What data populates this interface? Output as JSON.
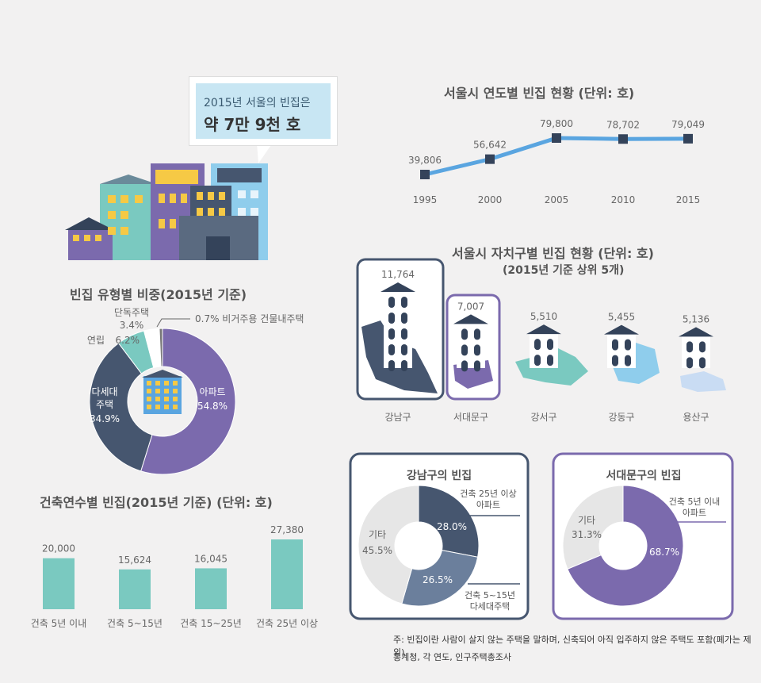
{
  "callout": {
    "line1": "2015년 서울의 빈집은",
    "line2": "약 7만 9천 호"
  },
  "colors": {
    "teal": "#7ac9c0",
    "purple": "#7b6aad",
    "navy": "#46566f",
    "lightgrey": "#e6e6e6",
    "blue": "#5aa5e0",
    "darknavy": "#34435a"
  },
  "chart_data": [
    {
      "type": "line",
      "title": "서울시 연도별 빈집 현황 (단위: 호)",
      "x": [
        "1995",
        "2000",
        "2005",
        "2010",
        "2015"
      ],
      "values": [
        39806,
        56642,
        79800,
        78702,
        79049
      ],
      "labels": [
        "39,806",
        "56,642",
        "79,800",
        "78,702",
        "79,049"
      ]
    },
    {
      "type": "pie",
      "title": "빈집 유형별 비중(2015년 기준)",
      "slices": [
        {
          "name": "아파트",
          "pct_label": "54.8%",
          "value": 54.8
        },
        {
          "name": "다세대 주택",
          "pct_label": "34.9%",
          "value": 34.9
        },
        {
          "name": "연립",
          "pct_label": "6.2%",
          "value": 6.2
        },
        {
          "name": "단독주택",
          "pct_label": "3.4%",
          "value": 3.4
        },
        {
          "name": "비거주용 건물내주택",
          "pct_label": "0.7%",
          "value": 0.7
        }
      ]
    },
    {
      "type": "bar",
      "title": "건축연수별 빈집(2015년 기준) (단위: 호)",
      "categories": [
        "건축 5년 이내",
        "건축 5~15년",
        "건축 15~25년",
        "건축 25년 이상"
      ],
      "values": [
        20000,
        15624,
        16045,
        27380
      ],
      "labels": [
        "20,000",
        "15,624",
        "16,045",
        "27,380"
      ]
    },
    {
      "type": "bar",
      "title": "서울시 자치구별 빈집 현황 (단위: 호)",
      "subtitle": "(2015년 기준 상위 5개)",
      "categories": [
        "강남구",
        "서대문구",
        "강서구",
        "강동구",
        "용산구"
      ],
      "values": [
        11764,
        7007,
        5510,
        5455,
        5136
      ],
      "labels": [
        "11,764",
        "7,007",
        "5,510",
        "5,455",
        "5,136"
      ]
    },
    {
      "type": "pie",
      "title": "강남구의 빈집",
      "slices": [
        {
          "name": "건축 25년 이상 아파트",
          "pct_label": "28.0%",
          "value": 28.0
        },
        {
          "name": "건축 5~15년 다세대주택",
          "pct_label": "26.5%",
          "value": 26.5
        },
        {
          "name": "기타",
          "pct_label": "45.5%",
          "value": 45.5
        }
      ]
    },
    {
      "type": "pie",
      "title": "서대문구의 빈집",
      "slices": [
        {
          "name": "건축 5년 이내 아파트",
          "pct_label": "68.7%",
          "value": 68.7
        },
        {
          "name": "기타",
          "pct_label": "31.3%",
          "value": 31.3
        }
      ]
    }
  ],
  "labels": {
    "pie1_dasedae_l1": "다세대",
    "pie1_dasedae_l2": "주택",
    "gangnam_apt_l1": "건축 25년 이상",
    "gangnam_apt_l2": "아파트",
    "gangnam_dsd_l1": "건축 5~15년",
    "gangnam_dsd_l2": "다세대주택",
    "seodaemun_apt_l1": "건축 5년 이내",
    "seodaemun_apt_l2": "아파트"
  },
  "footnote": {
    "note": "주: 빈집이란 사람이 살지 않는 주택을 말하며, 신축되어 아직 입주하지 않은 주택도 포함(폐가는 제외)",
    "source": "통계청, 각 연도, 인구주택총조사"
  }
}
